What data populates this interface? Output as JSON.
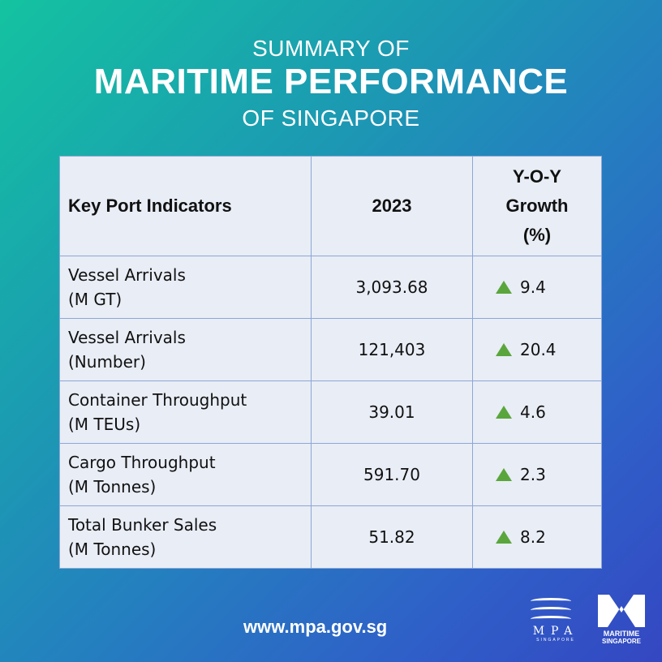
{
  "header": {
    "line1": "SUMMARY OF",
    "line2": "MARITIME PERFORMANCE",
    "line3": "OF SINGAPORE"
  },
  "table": {
    "columns": [
      "Key Port Indicators",
      "2023",
      "Y-O-Y Growth (%)"
    ],
    "rows": [
      {
        "indicator": "Vessel Arrivals",
        "unit": "(M GT)",
        "value": "3,093.68",
        "growth": "9.4",
        "trend": "up"
      },
      {
        "indicator": "Vessel Arrivals",
        "unit": "(Number)",
        "value": "121,403",
        "growth": "20.4",
        "trend": "up"
      },
      {
        "indicator": "Container Throughput",
        "unit": "(M TEUs)",
        "value": "39.01",
        "growth": "4.6",
        "trend": "up"
      },
      {
        "indicator": "Cargo Throughput",
        "unit": "(M Tonnes)",
        "value": "591.70",
        "growth": "2.3",
        "trend": "up"
      },
      {
        "indicator": "Total Bunker Sales",
        "unit": "(M Tonnes)",
        "value": "51.82",
        "growth": "8.2",
        "trend": "up"
      }
    ],
    "up_color": "#5aa63c"
  },
  "footer": {
    "url": "www.mpa.gov.sg",
    "mpa_logo": {
      "name": "MPA",
      "sub": "SINGAPORE"
    },
    "maritime_logo": {
      "line1": "MARITIME",
      "line2": "SINGAPORE"
    }
  }
}
